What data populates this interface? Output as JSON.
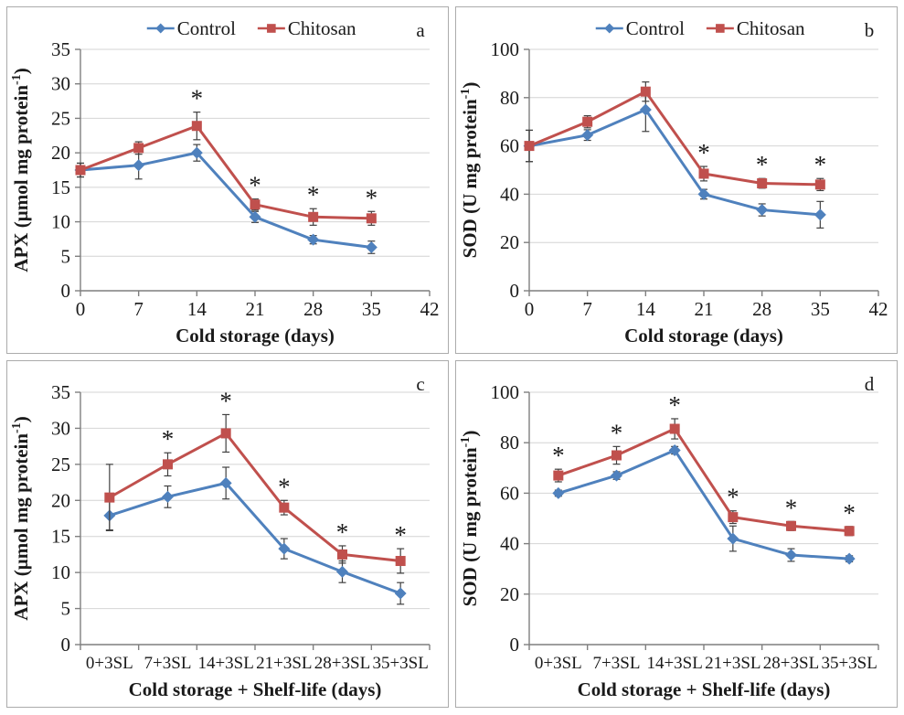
{
  "figure": {
    "background": "#ffffff",
    "panel_border_color": "#ABABAB",
    "legend_labels": [
      "Control",
      "Chitosan"
    ],
    "colors": {
      "control": "#4F81BD",
      "chitosan": "#C0504D",
      "grid": "#D4D4D4",
      "axis": "#7F7F7F",
      "error_bar": "#404040",
      "text": "#1a1a1a"
    }
  },
  "chart_data": [
    {
      "type": "line",
      "panel_label": "a",
      "show_legend": true,
      "xlabel": "Cold storage (days)",
      "ylabel": "APX (µmol mg protein",
      "ylabel_sup": "-1",
      "ylabel_close": ")",
      "x_mode": "numeric",
      "xlim": [
        0,
        42
      ],
      "x_ticks": [
        0,
        7,
        14,
        21,
        28,
        35,
        42
      ],
      "ylim": [
        0,
        35
      ],
      "y_ticks": [
        0,
        5,
        10,
        15,
        20,
        25,
        30,
        35
      ],
      "x": [
        0,
        7,
        14,
        21,
        28,
        35
      ],
      "series": [
        {
          "name": "Control",
          "marker": "diamond",
          "color_key": "control",
          "values": [
            17.5,
            18.2,
            20.0,
            10.7,
            7.4,
            6.3
          ],
          "errors": [
            1.0,
            2.0,
            1.2,
            0.8,
            0.6,
            0.9
          ]
        },
        {
          "name": "Chitosan",
          "marker": "square",
          "color_key": "chitosan",
          "values": [
            17.5,
            20.7,
            23.9,
            12.5,
            10.7,
            10.5
          ],
          "errors": [
            1.0,
            0.9,
            2.0,
            0.8,
            1.2,
            1.0
          ]
        }
      ],
      "asterisk_idx": [
        2,
        3,
        4,
        5
      ]
    },
    {
      "type": "line",
      "panel_label": "b",
      "show_legend": true,
      "xlabel": "Cold storage (days)",
      "ylabel": "SOD (U mg protein",
      "ylabel_sup": "-1",
      "ylabel_close": ")",
      "x_mode": "numeric",
      "xlim": [
        0,
        42
      ],
      "x_ticks": [
        0,
        7,
        14,
        21,
        28,
        35,
        42
      ],
      "ylim": [
        0,
        100
      ],
      "y_ticks": [
        0,
        20,
        40,
        60,
        80,
        100
      ],
      "x": [
        0,
        7,
        14,
        21,
        28,
        35
      ],
      "series": [
        {
          "name": "Control",
          "marker": "diamond",
          "color_key": "control",
          "values": [
            60.0,
            64.5,
            75.0,
            40.0,
            33.5,
            31.5
          ],
          "errors": [
            6.5,
            2.2,
            9.0,
            2.0,
            2.5,
            5.5
          ]
        },
        {
          "name": "Chitosan",
          "marker": "square",
          "color_key": "chitosan",
          "values": [
            60.0,
            70.0,
            82.5,
            48.5,
            44.5,
            44.0
          ],
          "errors": [
            6.5,
            2.5,
            4.0,
            3.0,
            2.0,
            2.5
          ]
        }
      ],
      "asterisk_idx": [
        3,
        4,
        5
      ]
    },
    {
      "type": "line",
      "panel_label": "c",
      "show_legend": false,
      "xlabel": "Cold storage + Shelf-life (days)",
      "ylabel": "APX (µmol mg protein",
      "ylabel_sup": "-1",
      "ylabel_close": ")",
      "x_mode": "category",
      "categories": [
        "0+3SL",
        "7+3SL",
        "14+3SL",
        "21+3SL",
        "28+3SL",
        "35+3SL"
      ],
      "ylim": [
        0,
        35
      ],
      "y_ticks": [
        0,
        5,
        10,
        15,
        20,
        25,
        30,
        35
      ],
      "series": [
        {
          "name": "Control",
          "marker": "diamond",
          "color_key": "control",
          "values": [
            17.9,
            20.5,
            22.4,
            13.3,
            10.1,
            7.1
          ],
          "errors": [
            2.0,
            1.5,
            2.2,
            1.4,
            1.5,
            1.5
          ]
        },
        {
          "name": "Chitosan",
          "marker": "square",
          "color_key": "chitosan",
          "values": [
            20.4,
            25.0,
            29.3,
            19.0,
            12.5,
            11.6
          ],
          "errors": [
            4.6,
            1.6,
            2.6,
            1.0,
            1.2,
            1.7
          ]
        }
      ],
      "asterisk_idx": [
        1,
        2,
        3,
        4,
        5
      ]
    },
    {
      "type": "line",
      "panel_label": "d",
      "show_legend": false,
      "xlabel": "Cold storage + Shelf-life (days)",
      "ylabel": "SOD (U mg protein",
      "ylabel_sup": "-1",
      "ylabel_close": ")",
      "x_mode": "category",
      "categories": [
        "0+3SL",
        "7+3SL",
        "14+3SL",
        "21+3SL",
        "28+3SL",
        "35+3SL"
      ],
      "ylim": [
        0,
        100
      ],
      "y_ticks": [
        0,
        20,
        40,
        60,
        80,
        100
      ],
      "series": [
        {
          "name": "Control",
          "marker": "diamond",
          "color_key": "control",
          "values": [
            60.0,
            67.0,
            77.0,
            42.0,
            35.5,
            34.0
          ],
          "errors": [
            1.2,
            1.5,
            1.5,
            5.0,
            2.5,
            1.2
          ]
        },
        {
          "name": "Chitosan",
          "marker": "square",
          "color_key": "chitosan",
          "values": [
            67.0,
            75.0,
            85.5,
            50.5,
            47.0,
            45.0
          ],
          "errors": [
            2.5,
            3.5,
            4.0,
            2.5,
            1.8,
            1.8
          ]
        }
      ],
      "asterisk_idx": [
        0,
        1,
        2,
        3,
        4,
        5
      ]
    }
  ]
}
